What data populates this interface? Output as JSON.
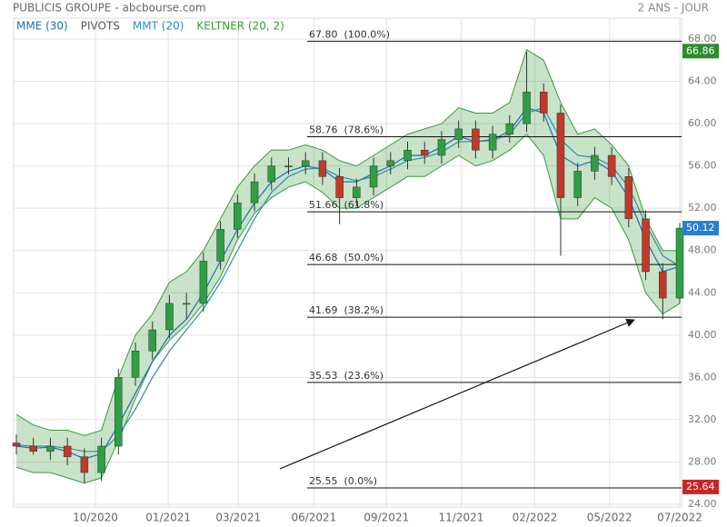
{
  "chart_data": {
    "type": "candlestick",
    "title": "PUBLICIS GROUPE - abcbourse.com",
    "subtitle": "2 ANS - JOUR",
    "open": [
      29.8,
      29.5,
      29,
      29.5,
      28.5,
      27,
      29.5,
      36,
      38.5,
      40.5,
      43,
      43,
      47,
      50,
      52.5,
      54.5,
      56,
      56,
      56.5,
      55,
      53,
      54,
      56,
      56.5,
      57.5,
      57,
      58.5,
      59.5,
      57.5,
      59,
      60,
      63,
      61,
      53,
      55.5,
      57,
      55,
      51,
      46,
      43.5
    ],
    "high": [
      30.6,
      30.3,
      30.3,
      30.3,
      29.3,
      30.3,
      36.8,
      39.3,
      41.3,
      43.8,
      44,
      47.8,
      50.8,
      53.3,
      55.3,
      56.8,
      56.8,
      57.3,
      57.3,
      55.8,
      54.8,
      56.8,
      57.3,
      58.3,
      58.3,
      59.3,
      60.3,
      60.3,
      59.8,
      60.8,
      66.8,
      63.8,
      61.8,
      56.3,
      57.8,
      57.8,
      55.8,
      51.8,
      46.8,
      50.6
    ],
    "low": [
      28.7,
      28.7,
      28.2,
      27.7,
      26,
      26.2,
      28.7,
      35.2,
      37.7,
      39.7,
      41.5,
      42.2,
      46.2,
      49.2,
      51.7,
      53.7,
      55.2,
      55.2,
      54.2,
      50.5,
      52.2,
      53.2,
      55.2,
      55.7,
      56.2,
      56.2,
      57.7,
      56.7,
      56.7,
      58.2,
      59.2,
      60.2,
      47.5,
      52.2,
      54.7,
      54.2,
      50.2,
      45.2,
      41.5,
      43
    ],
    "close": [
      29.5,
      29,
      29.5,
      28.5,
      27,
      29.5,
      36,
      38.5,
      40.5,
      43,
      43,
      47,
      50,
      52.5,
      54.5,
      56,
      56,
      56.5,
      55,
      53,
      54,
      56,
      56.5,
      57.5,
      57,
      58.5,
      59.5,
      57.5,
      59,
      60,
      63,
      61,
      53,
      55.5,
      57,
      55,
      51,
      46,
      43.5,
      50.12
    ],
    "up_color": "#2f9e44",
    "down_color": "#c0392b",
    "series": [
      {
        "name": "MME (30)",
        "color": "#1f6fb5",
        "values": [
          29.5,
          29.3,
          29.4,
          29,
          28.3,
          28.8,
          31.5,
          34.5,
          37.5,
          40,
          41.5,
          44,
          47,
          50,
          52.5,
          54.5,
          55.5,
          56,
          55.7,
          54.5,
          54.5,
          55.3,
          56,
          57,
          57,
          57.8,
          58.8,
          58.3,
          58.5,
          59.3,
          61.5,
          61,
          57,
          56,
          56.5,
          55.5,
          53,
          49,
          46,
          46.5
        ]
      },
      {
        "name": "PIVOTS",
        "color": "#555555"
      },
      {
        "name": "MMT (20)",
        "color": "#2a8fb0",
        "values": [
          29.6,
          29.5,
          29.5,
          29.3,
          29,
          29,
          30.5,
          33,
          36,
          38.5,
          40.5,
          42.5,
          45,
          48,
          51,
          53.5,
          55,
          55.7,
          55.8,
          55,
          54.6,
          55,
          55.7,
          56.5,
          56.8,
          57.3,
          58.3,
          58.3,
          58.4,
          59,
          61,
          61.5,
          58.5,
          57,
          56.8,
          56,
          54,
          50.5,
          47.5,
          46.5
        ]
      },
      {
        "name": "KELTNER (20, 2)",
        "color": "#3a9a3a",
        "upper": [
          32.5,
          31.5,
          31,
          31,
          30.5,
          31,
          36,
          40,
          42,
          45,
          46,
          48,
          51,
          54,
          56,
          57.5,
          57.5,
          58,
          57.5,
          56.5,
          56,
          57,
          58,
          59,
          59.5,
          60,
          61.5,
          61,
          61,
          62,
          67,
          66,
          62,
          59,
          59.5,
          58,
          56,
          51,
          48,
          48
        ],
        "lower": [
          27.5,
          27,
          27,
          26.5,
          26,
          26.5,
          30,
          34,
          37.5,
          39.5,
          41,
          43,
          45.5,
          49,
          51.5,
          53,
          54,
          54.5,
          53.5,
          52,
          52,
          53,
          54,
          55,
          55,
          56,
          57,
          56,
          56.5,
          57.5,
          59,
          57,
          51,
          51,
          53,
          52,
          49,
          44,
          42,
          43
        ]
      }
    ],
    "fib_levels": [
      {
        "value": 67.8,
        "label": "67.80  (100.0%)"
      },
      {
        "value": 58.76,
        "label": "58.76  (78.6%)"
      },
      {
        "value": 51.66,
        "label": "51.66  (61.8%)"
      },
      {
        "value": 46.68,
        "label": "46.68  (50.0%)"
      },
      {
        "value": 41.69,
        "label": "41.69  (38.2%)"
      },
      {
        "value": 35.53,
        "label": "35.53  (23.6%)"
      },
      {
        "value": 25.55,
        "label": "25.55  (0.0%)"
      }
    ],
    "price_labels": [
      {
        "value": 66.86,
        "color": "#2e8b2e"
      },
      {
        "value": 50.12,
        "color": "#2a7fd4"
      },
      {
        "value": 25.64,
        "color": "#c62828"
      }
    ],
    "xlim": [
      0,
      39
    ],
    "xticks": [
      {
        "value": 4.65,
        "label": "10/2020"
      },
      {
        "value": 8.93,
        "label": "01/2021"
      },
      {
        "value": 13.05,
        "label": "03/2021"
      },
      {
        "value": 17.49,
        "label": "06/2021"
      },
      {
        "value": 21.76,
        "label": "09/2021"
      },
      {
        "value": 26.15,
        "label": "11/2021"
      },
      {
        "value": 30.48,
        "label": "02/2022"
      },
      {
        "value": 34.87,
        "label": "05/2022"
      },
      {
        "value": 39,
        "label": "07/2022"
      }
    ],
    "ylim": [
      24,
      68
    ],
    "yticks": [
      {
        "value": 24,
        "label": "24.00"
      },
      {
        "value": 28,
        "label": "28.00"
      },
      {
        "value": 32,
        "label": "32.00"
      },
      {
        "value": 36,
        "label": "36.00"
      },
      {
        "value": 40,
        "label": "40.00"
      },
      {
        "value": 44,
        "label": "44.00"
      },
      {
        "value": 48,
        "label": "48.00"
      },
      {
        "value": 52,
        "label": "52.00"
      },
      {
        "value": 56,
        "label": "56.00"
      },
      {
        "value": 60,
        "label": "60.00"
      },
      {
        "value": 64,
        "label": "64.00"
      },
      {
        "value": 68,
        "label": "68.00"
      }
    ],
    "grid": true
  }
}
